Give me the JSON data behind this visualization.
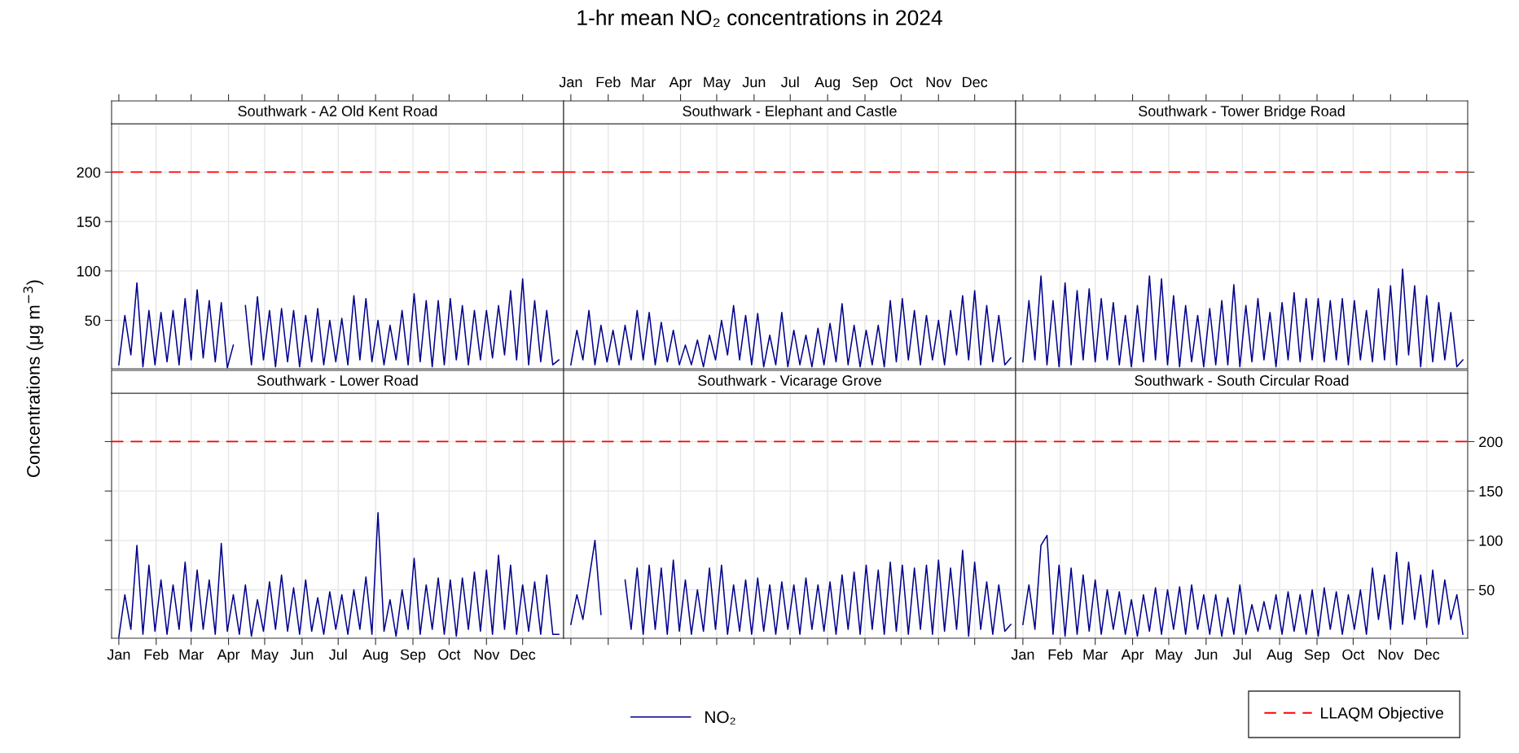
{
  "chart_data": [
    {
      "type": "other",
      "title": "1-hr mean NO₂ concentrations in 2024"
    },
    {
      "type": "line",
      "subtitle": "Southwark - A2 Old Kent Road",
      "ylabel": "Concentrations (μg m$^{−3}$)",
      "legend": "bottom",
      "grid": true,
      "tick_labels": "y",
      "x": [
        "2024-01-01",
        "2024-01-06",
        "2024-01-11",
        "2024-01-16",
        "2024-01-21",
        "2024-01-26",
        "2024-01-31",
        "2024-02-05",
        "2024-02-10",
        "2024-02-15",
        "2024-02-20",
        "2024-02-25",
        "2024-03-01",
        "2024-03-06",
        "2024-03-11",
        "2024-03-16",
        "2024-03-21",
        "2024-03-26",
        "2024-03-31",
        "2024-04-05",
        "2024-04-10",
        "2024-04-15",
        "2024-04-20",
        "2024-04-25",
        "2024-04-30",
        "2024-05-05",
        "2024-05-10",
        "2024-05-15",
        "2024-05-20",
        "2024-05-25",
        "2024-05-30",
        "2024-06-04",
        "2024-06-09",
        "2024-06-14",
        "2024-06-19",
        "2024-06-24",
        "2024-06-29",
        "2024-07-04",
        "2024-07-09",
        "2024-07-14",
        "2024-07-19",
        "2024-07-24",
        "2024-07-29",
        "2024-08-03",
        "2024-08-08",
        "2024-08-13",
        "2024-08-18",
        "2024-08-23",
        "2024-08-28",
        "2024-09-02",
        "2024-09-07",
        "2024-09-12",
        "2024-09-17",
        "2024-09-22",
        "2024-09-27",
        "2024-10-02",
        "2024-10-07",
        "2024-10-12",
        "2024-10-17",
        "2024-10-22",
        "2024-10-27",
        "2024-11-01",
        "2024-11-06",
        "2024-11-11",
        "2024-11-16",
        "2024-11-21",
        "2024-11-26",
        "2024-12-01",
        "2024-12-06",
        "2024-12-11",
        "2024-12-16",
        "2024-12-21",
        "2024-12-26",
        "2024-12-31"
      ],
      "series": [
        {
          "name": "NO₂",
          "color": "#00008b",
          "values": [
            5,
            55,
            15,
            88,
            3,
            60,
            5,
            58,
            8,
            60,
            5,
            72,
            10,
            81,
            12,
            70,
            8,
            68,
            2,
            25,
            null,
            65,
            5,
            74,
            10,
            60,
            3,
            62,
            8,
            60,
            3,
            55,
            8,
            62,
            5,
            50,
            8,
            52,
            5,
            75,
            10,
            72,
            8,
            50,
            5,
            45,
            10,
            60,
            5,
            77,
            8,
            70,
            3,
            70,
            5,
            72,
            10,
            65,
            5,
            60,
            10,
            60,
            12,
            65,
            15,
            80,
            10,
            92,
            5,
            70,
            8,
            60,
            5,
            10
          ]
        }
      ],
      "xlim": [
        "2023-12-26",
        "2025-01-04"
      ],
      "xticks": [
        {
          "value": "2024-01-01",
          "label": null
        },
        {
          "value": "2024-02-01",
          "label": null
        },
        {
          "value": "2024-03-01",
          "label": null
        },
        {
          "value": "2024-04-01",
          "label": null
        },
        {
          "value": "2024-05-01",
          "label": null
        },
        {
          "value": "2024-06-01",
          "label": null
        },
        {
          "value": "2024-07-01",
          "label": null
        },
        {
          "value": "2024-08-01",
          "label": null
        },
        {
          "value": "2024-09-01",
          "label": null
        },
        {
          "value": "2024-10-01",
          "label": null
        },
        {
          "value": "2024-11-01",
          "label": null
        },
        {
          "value": "2024-12-01",
          "label": null
        }
      ],
      "ylim": [
        1,
        249
      ],
      "yticks": [
        50,
        100,
        150,
        200
      ],
      "ref_lines": [
        {
          "axis": "y",
          "value": 200,
          "label": "LLAQM Objective",
          "color": "#ff0000",
          "line_style": "dashed"
        }
      ]
    },
    {
      "type": "line",
      "subtitle": "Southwark - Elephant and Castle",
      "grid": true,
      "tick_labels": "x",
      "x": [
        "2024-01-01",
        "2024-01-06",
        "2024-01-11",
        "2024-01-16",
        "2024-01-21",
        "2024-01-26",
        "2024-01-31",
        "2024-02-05",
        "2024-02-10",
        "2024-02-15",
        "2024-02-20",
        "2024-02-25",
        "2024-03-01",
        "2024-03-06",
        "2024-03-11",
        "2024-03-16",
        "2024-03-21",
        "2024-03-26",
        "2024-03-31",
        "2024-04-05",
        "2024-04-10",
        "2024-04-15",
        "2024-04-20",
        "2024-04-25",
        "2024-04-30",
        "2024-05-05",
        "2024-05-10",
        "2024-05-15",
        "2024-05-20",
        "2024-05-25",
        "2024-05-30",
        "2024-06-04",
        "2024-06-09",
        "2024-06-14",
        "2024-06-19",
        "2024-06-24",
        "2024-06-29",
        "2024-07-04",
        "2024-07-09",
        "2024-07-14",
        "2024-07-19",
        "2024-07-24",
        "2024-07-29",
        "2024-08-03",
        "2024-08-08",
        "2024-08-13",
        "2024-08-18",
        "2024-08-23",
        "2024-08-28",
        "2024-09-02",
        "2024-09-07",
        "2024-09-12",
        "2024-09-17",
        "2024-09-22",
        "2024-09-27",
        "2024-10-02",
        "2024-10-07",
        "2024-10-12",
        "2024-10-17",
        "2024-10-22",
        "2024-10-27",
        "2024-11-01",
        "2024-11-06",
        "2024-11-11",
        "2024-11-16",
        "2024-11-21",
        "2024-11-26",
        "2024-12-01",
        "2024-12-06",
        "2024-12-11",
        "2024-12-16",
        "2024-12-21",
        "2024-12-26",
        "2024-12-31"
      ],
      "series": [
        {
          "color": "#00008b",
          "values": [
            5,
            40,
            10,
            60,
            5,
            45,
            8,
            40,
            5,
            45,
            10,
            60,
            10,
            58,
            5,
            48,
            8,
            40,
            5,
            25,
            5,
            30,
            3,
            35,
            10,
            50,
            15,
            65,
            10,
            55,
            5,
            57,
            3,
            35,
            5,
            58,
            3,
            40,
            5,
            35,
            3,
            42,
            5,
            47,
            8,
            67,
            5,
            45,
            3,
            40,
            5,
            45,
            3,
            70,
            8,
            72,
            10,
            60,
            5,
            55,
            10,
            50,
            5,
            60,
            15,
            75,
            10,
            80,
            5,
            65,
            8,
            55,
            5,
            12
          ]
        }
      ],
      "xlim": [
        "2023-12-26",
        "2025-01-04"
      ],
      "x2lim": [
        "2023-12-26",
        "2025-01-04"
      ],
      "x2ticks": [
        {
          "value": "2024-01-01",
          "label": "Jan"
        },
        {
          "value": "2024-02-01",
          "label": "Feb"
        },
        {
          "value": "2024-03-01",
          "label": "Mar"
        },
        {
          "value": "2024-04-01",
          "label": "Apr"
        },
        {
          "value": "2024-05-01",
          "label": "May"
        },
        {
          "value": "2024-06-01",
          "label": "Jun"
        },
        {
          "value": "2024-07-01",
          "label": "Jul"
        },
        {
          "value": "2024-08-01",
          "label": "Aug"
        },
        {
          "value": "2024-09-01",
          "label": "Sep"
        },
        {
          "value": "2024-10-01",
          "label": "Oct"
        },
        {
          "value": "2024-11-01",
          "label": "Nov"
        },
        {
          "value": "2024-12-01",
          "label": "Dec"
        }
      ],
      "ylim": [
        1,
        249
      ],
      "yticks": [
        50,
        100,
        150,
        200
      ],
      "ref_lines": [
        {
          "axis": "y",
          "value": 200,
          "color": "#ff0000",
          "line_style": "dashed"
        }
      ]
    },
    {
      "type": "line",
      "subtitle": "Southwark - Tower Bridge Road",
      "grid": true,
      "tick_labels": false,
      "x": [
        "2024-01-01",
        "2024-01-06",
        "2024-01-11",
        "2024-01-16",
        "2024-01-21",
        "2024-01-26",
        "2024-01-31",
        "2024-02-05",
        "2024-02-10",
        "2024-02-15",
        "2024-02-20",
        "2024-02-25",
        "2024-03-01",
        "2024-03-06",
        "2024-03-11",
        "2024-03-16",
        "2024-03-21",
        "2024-03-26",
        "2024-03-31",
        "2024-04-05",
        "2024-04-10",
        "2024-04-15",
        "2024-04-20",
        "2024-04-25",
        "2024-04-30",
        "2024-05-05",
        "2024-05-10",
        "2024-05-15",
        "2024-05-20",
        "2024-05-25",
        "2024-05-30",
        "2024-06-04",
        "2024-06-09",
        "2024-06-14",
        "2024-06-19",
        "2024-06-24",
        "2024-06-29",
        "2024-07-04",
        "2024-07-09",
        "2024-07-14",
        "2024-07-19",
        "2024-07-24",
        "2024-07-29",
        "2024-08-03",
        "2024-08-08",
        "2024-08-13",
        "2024-08-18",
        "2024-08-23",
        "2024-08-28",
        "2024-09-02",
        "2024-09-07",
        "2024-09-12",
        "2024-09-17",
        "2024-09-22",
        "2024-09-27",
        "2024-10-02",
        "2024-10-07",
        "2024-10-12",
        "2024-10-17",
        "2024-10-22",
        "2024-10-27",
        "2024-11-01",
        "2024-11-06",
        "2024-11-11",
        "2024-11-16",
        "2024-11-21",
        "2024-11-26",
        "2024-12-01",
        "2024-12-06",
        "2024-12-11",
        "2024-12-16",
        "2024-12-21",
        "2024-12-26",
        "2024-12-31"
      ],
      "series": [
        {
          "color": "#00008b",
          "values": [
            8,
            70,
            10,
            95,
            5,
            70,
            3,
            88,
            5,
            80,
            10,
            82,
            8,
            72,
            10,
            68,
            5,
            55,
            3,
            65,
            8,
            95,
            10,
            92,
            5,
            75,
            3,
            65,
            8,
            55,
            3,
            62,
            5,
            70,
            5,
            86,
            3,
            65,
            8,
            72,
            10,
            58,
            3,
            68,
            10,
            78,
            8,
            72,
            10,
            72,
            8,
            70,
            10,
            72,
            5,
            70,
            10,
            60,
            8,
            82,
            10,
            85,
            5,
            102,
            15,
            85,
            3,
            75,
            8,
            68,
            10,
            58,
            3,
            10
          ]
        }
      ],
      "xlim": [
        "2023-12-26",
        "2025-01-04"
      ],
      "xticks": [
        {
          "value": "2024-01-01",
          "label": null
        },
        {
          "value": "2024-02-01",
          "label": null
        },
        {
          "value": "2024-03-01",
          "label": null
        },
        {
          "value": "2024-04-01",
          "label": null
        },
        {
          "value": "2024-05-01",
          "label": null
        },
        {
          "value": "2024-06-01",
          "label": null
        },
        {
          "value": "2024-07-01",
          "label": null
        },
        {
          "value": "2024-08-01",
          "label": null
        },
        {
          "value": "2024-09-01",
          "label": null
        },
        {
          "value": "2024-10-01",
          "label": null
        },
        {
          "value": "2024-11-01",
          "label": null
        },
        {
          "value": "2024-12-01",
          "label": null
        }
      ],
      "ylim": [
        1,
        249
      ],
      "yticks": [
        50,
        100,
        150,
        200
      ],
      "ref_lines": [
        {
          "axis": "y",
          "value": 200,
          "color": "#ff0000",
          "line_style": "dashed"
        }
      ]
    },
    {
      "type": "line",
      "subtitle": "Southwark - Lower Road",
      "grid": true,
      "tick_labels": "x",
      "x": [
        "2024-01-01",
        "2024-01-06",
        "2024-01-11",
        "2024-01-16",
        "2024-01-21",
        "2024-01-26",
        "2024-01-31",
        "2024-02-05",
        "2024-02-10",
        "2024-02-15",
        "2024-02-20",
        "2024-02-25",
        "2024-03-01",
        "2024-03-06",
        "2024-03-11",
        "2024-03-16",
        "2024-03-21",
        "2024-03-26",
        "2024-03-31",
        "2024-04-05",
        "2024-04-10",
        "2024-04-15",
        "2024-04-20",
        "2024-04-25",
        "2024-04-30",
        "2024-05-05",
        "2024-05-10",
        "2024-05-15",
        "2024-05-20",
        "2024-05-25",
        "2024-05-30",
        "2024-06-04",
        "2024-06-09",
        "2024-06-14",
        "2024-06-19",
        "2024-06-24",
        "2024-06-29",
        "2024-07-04",
        "2024-07-09",
        "2024-07-14",
        "2024-07-19",
        "2024-07-24",
        "2024-07-29",
        "2024-08-03",
        "2024-08-08",
        "2024-08-13",
        "2024-08-18",
        "2024-08-23",
        "2024-08-28",
        "2024-09-02",
        "2024-09-07",
        "2024-09-12",
        "2024-09-17",
        "2024-09-22",
        "2024-09-27",
        "2024-10-02",
        "2024-10-07",
        "2024-10-12",
        "2024-10-17",
        "2024-10-22",
        "2024-10-27",
        "2024-11-01",
        "2024-11-06",
        "2024-11-11",
        "2024-11-16",
        "2024-11-21",
        "2024-11-26",
        "2024-12-01",
        "2024-12-06",
        "2024-12-11",
        "2024-12-16",
        "2024-12-21",
        "2024-12-26",
        "2024-12-31"
      ],
      "series": [
        {
          "color": "#00008b",
          "values": [
            2,
            45,
            10,
            95,
            5,
            75,
            8,
            60,
            5,
            55,
            10,
            78,
            8,
            70,
            10,
            60,
            5,
            97,
            8,
            45,
            5,
            55,
            3,
            40,
            8,
            58,
            10,
            65,
            8,
            52,
            5,
            60,
            8,
            42,
            5,
            48,
            10,
            45,
            5,
            50,
            10,
            63,
            5,
            128,
            8,
            40,
            3,
            50,
            10,
            82,
            5,
            55,
            10,
            62,
            5,
            60,
            3,
            62,
            10,
            68,
            8,
            70,
            5,
            85,
            10,
            75,
            5,
            55,
            8,
            58,
            5,
            65,
            5,
            5
          ]
        }
      ],
      "xlim": [
        "2023-12-26",
        "2025-01-04"
      ],
      "xticks": [
        {
          "value": "2024-01-01",
          "label": "Jan"
        },
        {
          "value": "2024-02-01",
          "label": "Feb"
        },
        {
          "value": "2024-03-01",
          "label": "Mar"
        },
        {
          "value": "2024-04-01",
          "label": "Apr"
        },
        {
          "value": "2024-05-01",
          "label": "May"
        },
        {
          "value": "2024-06-01",
          "label": "Jun"
        },
        {
          "value": "2024-07-01",
          "label": "Jul"
        },
        {
          "value": "2024-08-01",
          "label": "Aug"
        },
        {
          "value": "2024-09-01",
          "label": "Sep"
        },
        {
          "value": "2024-10-01",
          "label": "Oct"
        },
        {
          "value": "2024-11-01",
          "label": "Nov"
        },
        {
          "value": "2024-12-01",
          "label": "Dec"
        }
      ],
      "ylim": [
        1,
        249
      ],
      "yticks": [
        50,
        100,
        150,
        200
      ],
      "ref_lines": [
        {
          "axis": "y",
          "value": 200,
          "color": "#ff0000",
          "line_style": "dashed"
        }
      ]
    },
    {
      "type": "line",
      "subtitle": "Southwark - Vicarage Grove",
      "grid": true,
      "tick_labels": false,
      "x": [
        "2024-01-01",
        "2024-01-06",
        "2024-01-11",
        "2024-01-16",
        "2024-01-21",
        "2024-01-26",
        "2024-01-31",
        "2024-02-05",
        "2024-02-10",
        "2024-02-15",
        "2024-02-20",
        "2024-02-25",
        "2024-03-01",
        "2024-03-06",
        "2024-03-11",
        "2024-03-16",
        "2024-03-21",
        "2024-03-26",
        "2024-03-31",
        "2024-04-05",
        "2024-04-10",
        "2024-04-15",
        "2024-04-20",
        "2024-04-25",
        "2024-04-30",
        "2024-05-05",
        "2024-05-10",
        "2024-05-15",
        "2024-05-20",
        "2024-05-25",
        "2024-05-30",
        "2024-06-04",
        "2024-06-09",
        "2024-06-14",
        "2024-06-19",
        "2024-06-24",
        "2024-06-29",
        "2024-07-04",
        "2024-07-09",
        "2024-07-14",
        "2024-07-19",
        "2024-07-24",
        "2024-07-29",
        "2024-08-03",
        "2024-08-08",
        "2024-08-13",
        "2024-08-18",
        "2024-08-23",
        "2024-08-28",
        "2024-09-02",
        "2024-09-07",
        "2024-09-12",
        "2024-09-17",
        "2024-09-22",
        "2024-09-27",
        "2024-10-02",
        "2024-10-07",
        "2024-10-12",
        "2024-10-17",
        "2024-10-22",
        "2024-10-27",
        "2024-11-01",
        "2024-11-06",
        "2024-11-11",
        "2024-11-16",
        "2024-11-21",
        "2024-11-26",
        "2024-12-01",
        "2024-12-06",
        "2024-12-11",
        "2024-12-16",
        "2024-12-21",
        "2024-12-26",
        "2024-12-31"
      ],
      "series": [
        {
          "color": "#00008b",
          "values": [
            15,
            45,
            20,
            60,
            100,
            25,
            null,
            null,
            null,
            60,
            10,
            72,
            5,
            75,
            10,
            72,
            5,
            80,
            8,
            60,
            5,
            50,
            8,
            72,
            10,
            75,
            5,
            55,
            8,
            60,
            5,
            62,
            8,
            55,
            5,
            58,
            10,
            55,
            5,
            62,
            10,
            55,
            8,
            58,
            5,
            65,
            10,
            68,
            5,
            75,
            10,
            70,
            5,
            78,
            8,
            75,
            5,
            72,
            10,
            75,
            5,
            80,
            8,
            72,
            10,
            90,
            3,
            78,
            10,
            58,
            5,
            55,
            8,
            15
          ]
        }
      ],
      "xlim": [
        "2023-12-26",
        "2025-01-04"
      ],
      "xticks": [
        {
          "value": "2024-01-01",
          "label": null
        },
        {
          "value": "2024-02-01",
          "label": null
        },
        {
          "value": "2024-03-01",
          "label": null
        },
        {
          "value": "2024-04-01",
          "label": null
        },
        {
          "value": "2024-05-01",
          "label": null
        },
        {
          "value": "2024-06-01",
          "label": null
        },
        {
          "value": "2024-07-01",
          "label": null
        },
        {
          "value": "2024-08-01",
          "label": null
        },
        {
          "value": "2024-09-01",
          "label": null
        },
        {
          "value": "2024-10-01",
          "label": null
        },
        {
          "value": "2024-11-01",
          "label": null
        },
        {
          "value": "2024-12-01",
          "label": null
        }
      ],
      "ylim": [
        1,
        249
      ],
      "yticks": [
        50,
        100,
        150,
        200
      ],
      "ref_lines": [
        {
          "axis": "y",
          "value": 200,
          "color": "#ff0000",
          "line_style": "dashed"
        }
      ]
    },
    {
      "type": "line",
      "subtitle": "Southwark - South Circular Road",
      "grid": true,
      "x": [
        "2024-01-01",
        "2024-01-06",
        "2024-01-11",
        "2024-01-16",
        "2024-01-21",
        "2024-01-26",
        "2024-01-31",
        "2024-02-05",
        "2024-02-10",
        "2024-02-15",
        "2024-02-20",
        "2024-02-25",
        "2024-03-01",
        "2024-03-06",
        "2024-03-11",
        "2024-03-16",
        "2024-03-21",
        "2024-03-26",
        "2024-03-31",
        "2024-04-05",
        "2024-04-10",
        "2024-04-15",
        "2024-04-20",
        "2024-04-25",
        "2024-04-30",
        "2024-05-05",
        "2024-05-10",
        "2024-05-15",
        "2024-05-20",
        "2024-05-25",
        "2024-05-30",
        "2024-06-04",
        "2024-06-09",
        "2024-06-14",
        "2024-06-19",
        "2024-06-24",
        "2024-06-29",
        "2024-07-04",
        "2024-07-09",
        "2024-07-14",
        "2024-07-19",
        "2024-07-24",
        "2024-07-29",
        "2024-08-03",
        "2024-08-08",
        "2024-08-13",
        "2024-08-18",
        "2024-08-23",
        "2024-08-28",
        "2024-09-02",
        "2024-09-07",
        "2024-09-12",
        "2024-09-17",
        "2024-09-22",
        "2024-09-27",
        "2024-10-02",
        "2024-10-07",
        "2024-10-12",
        "2024-10-17",
        "2024-10-22",
        "2024-10-27",
        "2024-11-01",
        "2024-11-06",
        "2024-11-11",
        "2024-11-16",
        "2024-11-21",
        "2024-11-26",
        "2024-12-01",
        "2024-12-06",
        "2024-12-11",
        "2024-12-16",
        "2024-12-21",
        "2024-12-26",
        "2024-12-31"
      ],
      "series": [
        {
          "color": "#00008b",
          "axis": "y2",
          "values": [
            15,
            55,
            10,
            95,
            105,
            5,
            75,
            3,
            72,
            5,
            65,
            8,
            60,
            5,
            50,
            10,
            48,
            5,
            40,
            3,
            45,
            8,
            52,
            5,
            50,
            10,
            53,
            5,
            55,
            10,
            45,
            5,
            45,
            3,
            42,
            5,
            55,
            5,
            35,
            8,
            38,
            10,
            45,
            5,
            48,
            8,
            45,
            5,
            50,
            3,
            52,
            10,
            48,
            5,
            45,
            10,
            50,
            5,
            72,
            20,
            65,
            10,
            88,
            15,
            78,
            20,
            65,
            12,
            70,
            15,
            60,
            20,
            45,
            5
          ]
        }
      ],
      "xlim": [
        "2023-12-26",
        "2025-01-04"
      ],
      "xticks": [
        {
          "value": "2024-01-01",
          "label": "Jan"
        },
        {
          "value": "2024-02-01",
          "label": "Feb"
        },
        {
          "value": "2024-03-01",
          "label": "Mar"
        },
        {
          "value": "2024-04-01",
          "label": "Apr"
        },
        {
          "value": "2024-05-01",
          "label": "May"
        },
        {
          "value": "2024-06-01",
          "label": "Jun"
        },
        {
          "value": "2024-07-01",
          "label": "Jul"
        },
        {
          "value": "2024-08-01",
          "label": "Aug"
        },
        {
          "value": "2024-09-01",
          "label": "Sep"
        },
        {
          "value": "2024-10-01",
          "label": "Oct"
        },
        {
          "value": "2024-11-01",
          "label": "Nov"
        },
        {
          "value": "2024-12-01",
          "label": "Dec"
        }
      ],
      "y2lim": [
        1,
        249
      ],
      "y2ticks": [
        50,
        100,
        150,
        200
      ],
      "ref_lines": [
        {
          "axis": "y2",
          "value": 200,
          "color": "#ff0000",
          "line_style": "dashed"
        }
      ]
    }
  ]
}
